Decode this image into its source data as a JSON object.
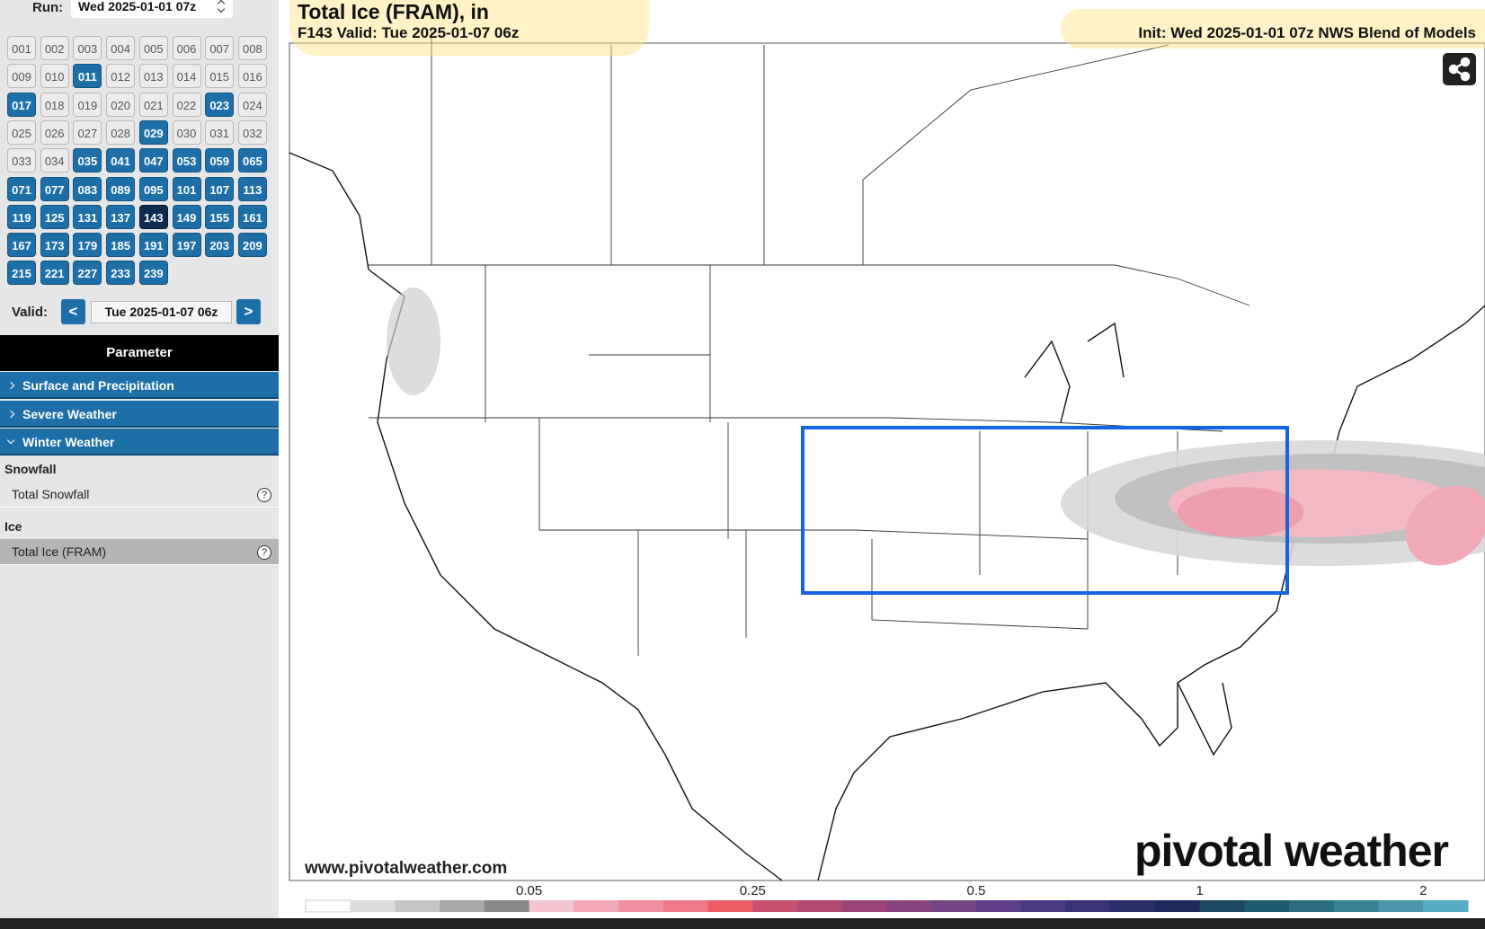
{
  "sidebar": {
    "run_label": "Run:",
    "run_value": "Wed 2025-01-01 07z",
    "forecast_hours": [
      {
        "label": "001",
        "state": "off"
      },
      {
        "label": "002",
        "state": "off"
      },
      {
        "label": "003",
        "state": "off"
      },
      {
        "label": "004",
        "state": "off"
      },
      {
        "label": "005",
        "state": "off"
      },
      {
        "label": "006",
        "state": "off"
      },
      {
        "label": "007",
        "state": "off"
      },
      {
        "label": "008",
        "state": "off"
      },
      {
        "label": "009",
        "state": "off"
      },
      {
        "label": "010",
        "state": "off"
      },
      {
        "label": "011",
        "state": "on"
      },
      {
        "label": "012",
        "state": "off"
      },
      {
        "label": "013",
        "state": "off"
      },
      {
        "label": "014",
        "state": "off"
      },
      {
        "label": "015",
        "state": "off"
      },
      {
        "label": "016",
        "state": "off"
      },
      {
        "label": "017",
        "state": "on"
      },
      {
        "label": "018",
        "state": "off"
      },
      {
        "label": "019",
        "state": "off"
      },
      {
        "label": "020",
        "state": "off"
      },
      {
        "label": "021",
        "state": "off"
      },
      {
        "label": "022",
        "state": "off"
      },
      {
        "label": "023",
        "state": "on"
      },
      {
        "label": "024",
        "state": "off"
      },
      {
        "label": "025",
        "state": "off"
      },
      {
        "label": "026",
        "state": "off"
      },
      {
        "label": "027",
        "state": "off"
      },
      {
        "label": "028",
        "state": "off"
      },
      {
        "label": "029",
        "state": "on"
      },
      {
        "label": "030",
        "state": "off"
      },
      {
        "label": "031",
        "state": "off"
      },
      {
        "label": "032",
        "state": "off"
      },
      {
        "label": "033",
        "state": "off"
      },
      {
        "label": "034",
        "state": "off"
      },
      {
        "label": "035",
        "state": "on"
      },
      {
        "label": "041",
        "state": "on"
      },
      {
        "label": "047",
        "state": "on"
      },
      {
        "label": "053",
        "state": "on"
      },
      {
        "label": "059",
        "state": "on"
      },
      {
        "label": "065",
        "state": "on"
      },
      {
        "label": "071",
        "state": "on"
      },
      {
        "label": "077",
        "state": "on"
      },
      {
        "label": "083",
        "state": "on"
      },
      {
        "label": "089",
        "state": "on"
      },
      {
        "label": "095",
        "state": "on"
      },
      {
        "label": "101",
        "state": "on"
      },
      {
        "label": "107",
        "state": "on"
      },
      {
        "label": "113",
        "state": "on"
      },
      {
        "label": "119",
        "state": "on"
      },
      {
        "label": "125",
        "state": "on"
      },
      {
        "label": "131",
        "state": "on"
      },
      {
        "label": "137",
        "state": "on"
      },
      {
        "label": "143",
        "state": "selected"
      },
      {
        "label": "149",
        "state": "on"
      },
      {
        "label": "155",
        "state": "on"
      },
      {
        "label": "161",
        "state": "on"
      },
      {
        "label": "167",
        "state": "on"
      },
      {
        "label": "173",
        "state": "on"
      },
      {
        "label": "179",
        "state": "on"
      },
      {
        "label": "185",
        "state": "on"
      },
      {
        "label": "191",
        "state": "on"
      },
      {
        "label": "197",
        "state": "on"
      },
      {
        "label": "203",
        "state": "on"
      },
      {
        "label": "209",
        "state": "on"
      },
      {
        "label": "215",
        "state": "on"
      },
      {
        "label": "221",
        "state": "on"
      },
      {
        "label": "227",
        "state": "on"
      },
      {
        "label": "233",
        "state": "on"
      },
      {
        "label": "239",
        "state": "on"
      }
    ],
    "valid_label": "Valid:",
    "prev": "<",
    "valid_value": "Tue 2025-01-07 06z",
    "next": ">",
    "parameter_header": "Parameter",
    "menus": [
      "Surface and Precipitation",
      "Severe Weather",
      "Winter Weather"
    ],
    "groups": [
      {
        "name": "Snowfall",
        "items": [
          {
            "label": "Total Snowfall",
            "help": "?"
          }
        ]
      },
      {
        "name": "Ice",
        "items": [
          {
            "label": "Total Ice (FRAM)",
            "help": "?"
          }
        ]
      }
    ]
  },
  "map": {
    "title": "Total Ice (FRAM), in",
    "subtitle": "F143 Valid: Tue 2025-01-07 06z",
    "init": "Init: Wed 2025-01-01 07z NWS Blend of Models",
    "watermark": "www.pivotalweather.com",
    "logo": "pivotal weather",
    "colorbar": {
      "colors": [
        "#ffffff",
        "#dcdcdc",
        "#c4c4c4",
        "#a8a8a8",
        "#8a8a8a",
        "#f4c4d0",
        "#f2a8b6",
        "#f0909e",
        "#ee7a86",
        "#ec5e64",
        "#c8506e",
        "#b04872",
        "#9c4478",
        "#88447e",
        "#744484",
        "#5e3e8a",
        "#4a3884",
        "#3a3276",
        "#2a2e68",
        "#1c2a5c",
        "#1a4660",
        "#1c5a70",
        "#2a6c80",
        "#3a8094",
        "#4a96ac",
        "#58acc4"
      ],
      "ticks": [
        "0.05",
        "0.25",
        "0.5",
        "1",
        "2"
      ]
    }
  }
}
